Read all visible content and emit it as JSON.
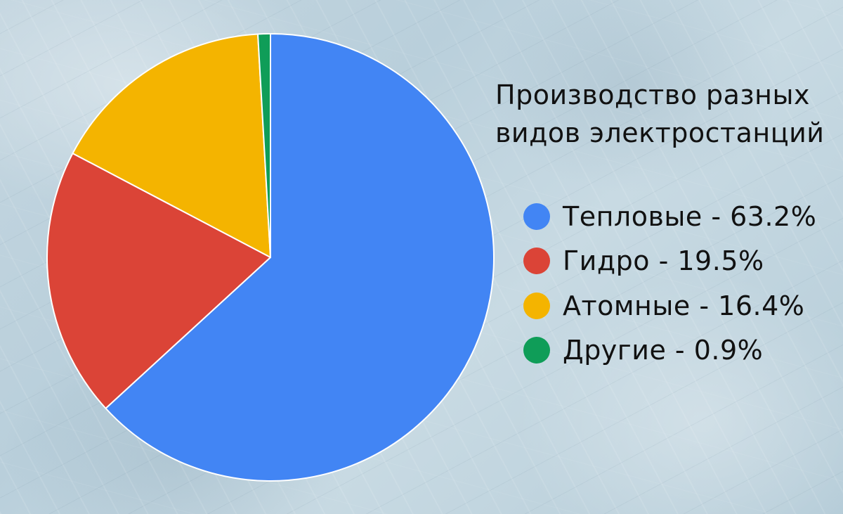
{
  "chart_data": {
    "type": "pie",
    "title_lines": [
      "Производство разных",
      "видов электростанций"
    ],
    "slices": [
      {
        "name": "Тепловые",
        "value": 63.2,
        "label": "Тепловые - 63.2%",
        "color": "#4285f4"
      },
      {
        "name": "Гидро",
        "value": 19.5,
        "label": "Гидро - 19.5%",
        "color": "#db4437"
      },
      {
        "name": "Атомные",
        "value": 16.4,
        "label": "Атомные - 16.4%",
        "color": "#f4b400"
      },
      {
        "name": "Другие",
        "value": 0.9,
        "label": "Другие - 0.9%",
        "color": "#0f9d58"
      }
    ],
    "start_angle_deg": 0,
    "direction": "clockwise",
    "legend_position": "right"
  }
}
